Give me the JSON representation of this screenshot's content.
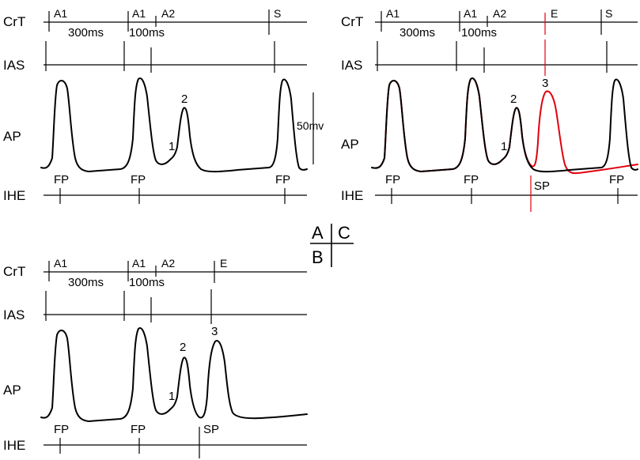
{
  "row_labels": {
    "crt": "CrT",
    "ias": "IAS",
    "ap": "AP",
    "ihe": "IHE"
  },
  "stimuli": {
    "a1": "A1",
    "a2": "A2",
    "s": "S",
    "e": "E"
  },
  "intervals": {
    "long": "300ms",
    "short": "100ms"
  },
  "peaks": {
    "one": "1",
    "two": "2",
    "three": "3"
  },
  "potentials": {
    "fp": "FP",
    "sp": "SP"
  },
  "scale_bar": "50mv",
  "legend": {
    "a": "A",
    "b": "B",
    "c": "C"
  },
  "colors": {
    "trace": "#000000",
    "highlight": "#e0000e"
  }
}
